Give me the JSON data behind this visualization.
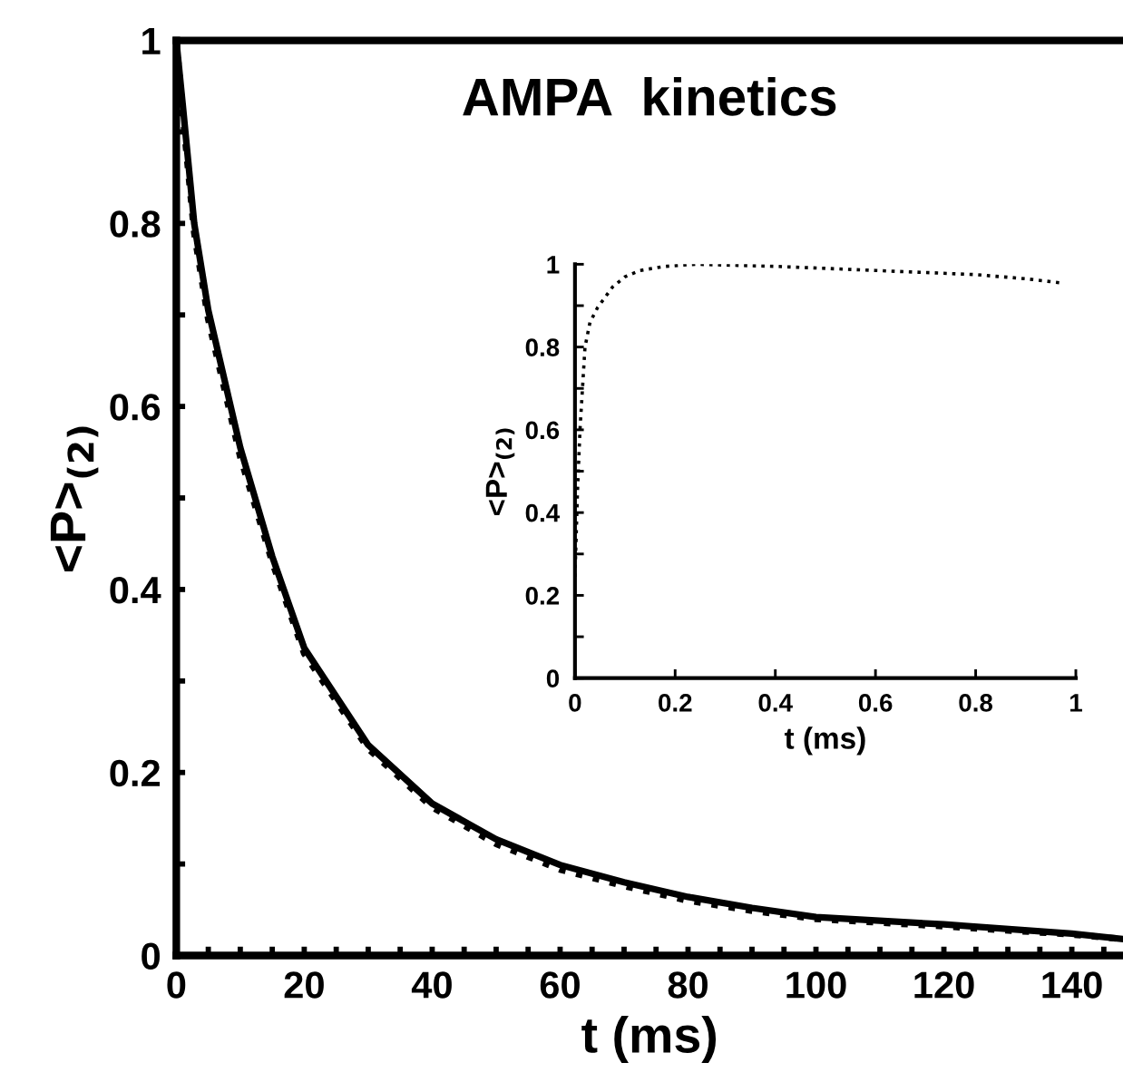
{
  "chart_data": [
    {
      "type": "line",
      "title": "AMPA  kinetics",
      "xlabel": "t (ms)",
      "ylabel": "<P>$_{(2)}$",
      "series": [
        {
          "color": "#000000",
          "line_style": "solid",
          "x": [
            0,
            1,
            2.8,
            5,
            10,
            15,
            20,
            30,
            40,
            50,
            60,
            70,
            80,
            90,
            100,
            120,
            140,
            148
          ],
          "values": [
            1.0,
            0.93,
            0.8,
            0.705,
            0.555,
            0.436,
            0.336,
            0.23,
            0.166,
            0.127,
            0.099,
            0.08,
            0.064,
            0.052,
            0.042,
            0.034,
            0.024,
            0.018
          ]
        },
        {
          "color": "#000000",
          "line_style": "dotted",
          "x": [
            0,
            1,
            2.8,
            5,
            10,
            15,
            20,
            30,
            40,
            50,
            60,
            70,
            80,
            90,
            100,
            120,
            140,
            148
          ],
          "values": [
            1.0,
            0.92,
            0.79,
            0.695,
            0.545,
            0.43,
            0.33,
            0.226,
            0.162,
            0.122,
            0.094,
            0.076,
            0.06,
            0.049,
            0.04,
            0.032,
            0.023,
            0.018
          ]
        }
      ],
      "xlim": [
        0,
        148
      ],
      "ylim": [
        0,
        1
      ],
      "xticks": [
        0,
        {
          "value": 5,
          "label": null
        },
        {
          "value": 10,
          "label": null
        },
        {
          "value": 15,
          "label": null
        },
        20,
        {
          "value": 25,
          "label": null
        },
        {
          "value": 30,
          "label": null
        },
        {
          "value": 35,
          "label": null
        },
        40,
        {
          "value": 45,
          "label": null
        },
        {
          "value": 50,
          "label": null
        },
        {
          "value": 55,
          "label": null
        },
        60,
        {
          "value": 65,
          "label": null
        },
        {
          "value": 70,
          "label": null
        },
        {
          "value": 75,
          "label": null
        },
        80,
        {
          "value": 85,
          "label": null
        },
        {
          "value": 90,
          "label": null
        },
        {
          "value": 95,
          "label": null
        },
        100,
        {
          "value": 105,
          "label": null
        },
        {
          "value": 110,
          "label": null
        },
        {
          "value": 115,
          "label": null
        },
        120,
        {
          "value": 125,
          "label": null
        },
        {
          "value": 130,
          "label": null
        },
        {
          "value": 135,
          "label": null
        },
        140,
        {
          "value": 145,
          "label": null
        }
      ],
      "yticks": [
        0,
        {
          "value": 0.1,
          "label": null
        },
        0.2,
        {
          "value": 0.3,
          "label": null
        },
        0.4,
        {
          "value": 0.5,
          "label": null
        },
        0.6,
        {
          "value": 0.7,
          "label": null
        },
        0.8,
        {
          "value": 0.9,
          "label": null
        },
        1
      ],
      "grid": false,
      "legend": false
    },
    {
      "type": "line",
      "xlabel": "t (ms)",
      "ylabel": "<P>$_{(2)}$",
      "series": [
        {
          "color": "#000000",
          "line_style": "dotted",
          "x": [
            0,
            0.005,
            0.01,
            0.02,
            0.03,
            0.045,
            0.075,
            0.1,
            0.13,
            0.18,
            0.24,
            0.3,
            0.4,
            0.5,
            0.6,
            0.7,
            0.8,
            0.9,
            0.97
          ],
          "values": [
            0.245,
            0.45,
            0.6,
            0.8,
            0.86,
            0.895,
            0.945,
            0.97,
            0.985,
            0.995,
            1.0,
            0.998,
            0.995,
            0.99,
            0.985,
            0.98,
            0.975,
            0.965,
            0.955
          ]
        }
      ],
      "xlim": [
        0,
        1
      ],
      "ylim": [
        0,
        1
      ],
      "xticks": [
        0,
        0.2,
        0.4,
        0.6,
        0.8,
        1
      ],
      "yticks": [
        0,
        {
          "value": 0.1,
          "label": null
        },
        0.2,
        {
          "value": 0.3,
          "label": null
        },
        0.4,
        {
          "value": 0.5,
          "label": null
        },
        0.6,
        {
          "value": 0.7,
          "label": null
        },
        0.8,
        {
          "value": 0.9,
          "label": null
        },
        1
      ],
      "grid": false,
      "legend": false
    }
  ]
}
